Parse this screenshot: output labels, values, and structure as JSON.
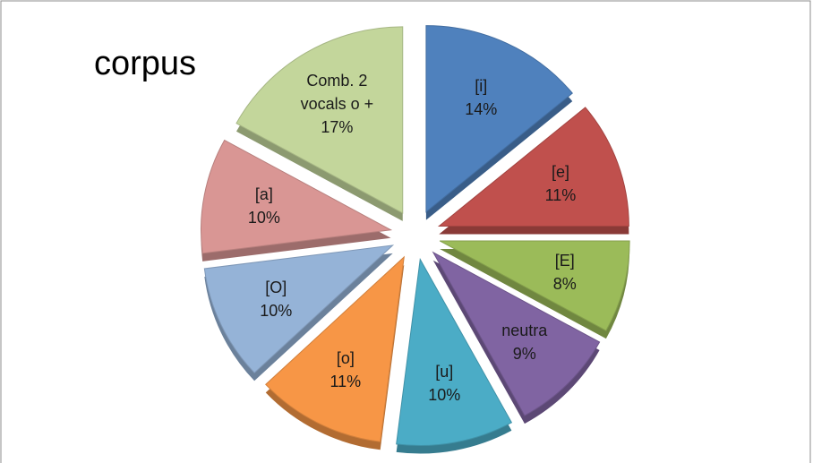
{
  "chart_data": {
    "type": "pie",
    "title": "corpus",
    "categories": [
      "[i]",
      "[e]",
      "[E]",
      "neutra",
      "[u]",
      "[o]",
      "[O]",
      "[a]",
      "Comb. 2 vocals o +"
    ],
    "values": [
      14,
      11,
      8,
      9,
      10,
      11,
      10,
      10,
      17
    ],
    "value_labels": [
      "14%",
      "11%",
      "8%",
      "9%",
      "10%",
      "11%",
      "10%",
      "10%",
      "17%"
    ],
    "colors": [
      "#4f81bd",
      "#c0504d",
      "#9bbb59",
      "#8064a2",
      "#4bacc6",
      "#f79646",
      "#95b3d7",
      "#d99694",
      "#c3d69b"
    ],
    "exploded": true
  }
}
